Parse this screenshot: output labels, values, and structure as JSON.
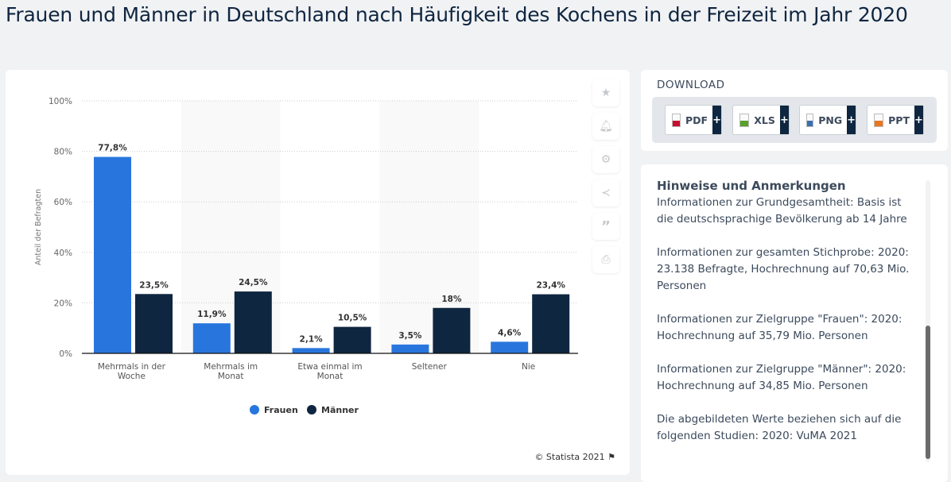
{
  "title": "Frauen und Männer in Deutschland nach Häufigkeit des Kochens in der Freizeit im Jahr 2020",
  "chart_data": {
    "type": "bar",
    "categories": [
      "Mehrmals in der Woche",
      "Mehrmals im Monat",
      "Etwa einmal im Monat",
      "Seltener",
      "Nie"
    ],
    "series": [
      {
        "name": "Frauen",
        "values": [
          77.8,
          11.9,
          2.1,
          3.5,
          4.6
        ],
        "labels": [
          "77,8%",
          "11,9%",
          "2,1%",
          "3,5%",
          "4,6%"
        ],
        "color": "#2876dd"
      },
      {
        "name": "Männer",
        "values": [
          23.5,
          24.5,
          10.5,
          18,
          23.4
        ],
        "labels": [
          "23,5%",
          "24,5%",
          "10,5%",
          "18%",
          "23,4%"
        ],
        "color": "#0f2640"
      }
    ],
    "ylabel": "Anteil der Befragten",
    "ylim": [
      0,
      100
    ],
    "yticks": [
      0,
      20,
      40,
      60,
      80,
      100
    ],
    "ytick_labels": [
      "0%",
      "20%",
      "40%",
      "60%",
      "80%",
      "100%"
    ],
    "grid": true,
    "legend": "bottom"
  },
  "credit": "© Statista 2021",
  "side_icons": [
    "star-icon",
    "bell-icon",
    "gear-icon",
    "share-icon",
    "quote-icon",
    "print-icon"
  ],
  "download": {
    "title": "DOWNLOAD",
    "buttons": [
      {
        "label": "PDF",
        "color": "#c8102e"
      },
      {
        "label": "XLS",
        "color": "#5aa02c"
      },
      {
        "label": "PNG",
        "color": "#3a6fb0"
      },
      {
        "label": "PPT",
        "color": "#e87722"
      }
    ],
    "plus": "+"
  },
  "notes": {
    "title": "Hinweise und Anmerkungen",
    "paragraphs": [
      "Informationen zur Grundgesamtheit: Basis ist die deutschsprachige Bevölkerung ab 14 Jahre",
      "Informationen zur gesamten Stichprobe: 2020: 23.138 Befragte, Hochrechnung auf 70,63 Mio. Personen",
      "Informationen zur Zielgruppe \"Frauen\": 2020: Hochrechnung auf 35,79 Mio. Personen",
      "Informationen zur Zielgruppe \"Männer\": 2020: Hochrechnung auf 34,85 Mio. Personen",
      "Die abgebildeten Werte beziehen sich auf die folgenden Studien: 2020: VuMA 2021"
    ]
  }
}
